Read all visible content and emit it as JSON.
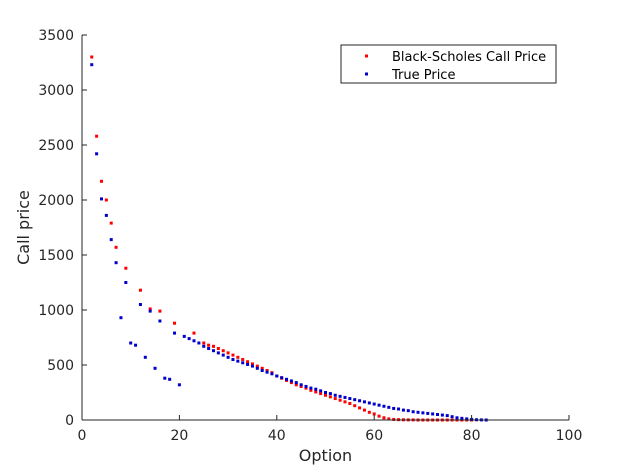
{
  "chart_data": {
    "type": "scatter",
    "title": "",
    "xlabel": "Option",
    "ylabel": "Call price",
    "xlim": [
      0,
      100
    ],
    "ylim": [
      0,
      3500
    ],
    "xticks": [
      0,
      20,
      40,
      60,
      80,
      100
    ],
    "yticks": [
      0,
      500,
      1000,
      1500,
      2000,
      2500,
      3000,
      3500
    ],
    "xtick_labels": [
      "0",
      "20",
      "40",
      "60",
      "80",
      "100"
    ],
    "ytick_labels": [
      "0",
      "500",
      "1000",
      "1500",
      "2000",
      "2500",
      "3000",
      "3500"
    ],
    "grid": false,
    "legend_position": "top-right",
    "series": [
      {
        "name": "Black-Scholes Call Price",
        "color": "#ff0000",
        "x": [
          2,
          3,
          4,
          5,
          6,
          7,
          9,
          12,
          14,
          16,
          19,
          23,
          25,
          26,
          27,
          28,
          29,
          30,
          31,
          32,
          33,
          34,
          35,
          36,
          37,
          38,
          39,
          40,
          41,
          42,
          43,
          44,
          45,
          46,
          47,
          48,
          49,
          50,
          51,
          52,
          53,
          54,
          55,
          56,
          57,
          58,
          59,
          60,
          61,
          62,
          63,
          64,
          65,
          66,
          67,
          68,
          69,
          70,
          71,
          72,
          73,
          74,
          75,
          76,
          77,
          78,
          79,
          80
        ],
        "y": [
          3300,
          2580,
          2170,
          2000,
          1790,
          1570,
          1380,
          1180,
          1010,
          990,
          880,
          790,
          700,
          680,
          670,
          650,
          630,
          610,
          590,
          570,
          550,
          530,
          510,
          490,
          470,
          450,
          430,
          400,
          380,
          360,
          340,
          320,
          305,
          290,
          270,
          255,
          240,
          225,
          210,
          195,
          180,
          165,
          150,
          130,
          110,
          90,
          70,
          55,
          35,
          20,
          10,
          5,
          3,
          2,
          1,
          1,
          0,
          0,
          0,
          0,
          0,
          0,
          0,
          0,
          0,
          0,
          0,
          0
        ]
      },
      {
        "name": "True Price",
        "color": "#0000cc",
        "x": [
          2,
          3,
          4,
          5,
          6,
          7,
          8,
          9,
          10,
          11,
          12,
          13,
          14,
          15,
          16,
          17,
          18,
          19,
          20,
          21,
          22,
          23,
          24,
          25,
          26,
          27,
          28,
          29,
          30,
          31,
          32,
          33,
          34,
          35,
          36,
          37,
          38,
          39,
          40,
          41,
          42,
          43,
          44,
          45,
          46,
          47,
          48,
          49,
          50,
          51,
          52,
          53,
          54,
          55,
          56,
          57,
          58,
          59,
          60,
          61,
          62,
          63,
          64,
          65,
          66,
          67,
          68,
          69,
          70,
          71,
          72,
          73,
          74,
          75,
          76,
          77,
          78,
          79,
          80,
          81,
          82,
          83
        ],
        "y": [
          3230,
          2420,
          2010,
          1860,
          1640,
          1430,
          930,
          1250,
          700,
          680,
          1050,
          570,
          990,
          470,
          900,
          380,
          370,
          790,
          320,
          760,
          740,
          720,
          700,
          670,
          650,
          630,
          610,
          590,
          570,
          550,
          535,
          520,
          505,
          490,
          470,
          450,
          435,
          420,
          400,
          385,
          370,
          355,
          340,
          320,
          305,
          290,
          280,
          265,
          250,
          240,
          225,
          215,
          205,
          195,
          185,
          175,
          165,
          155,
          145,
          135,
          125,
          115,
          105,
          100,
          90,
          85,
          75,
          70,
          65,
          60,
          55,
          50,
          45,
          40,
          30,
          20,
          15,
          10,
          5,
          2,
          1,
          0
        ]
      }
    ]
  }
}
